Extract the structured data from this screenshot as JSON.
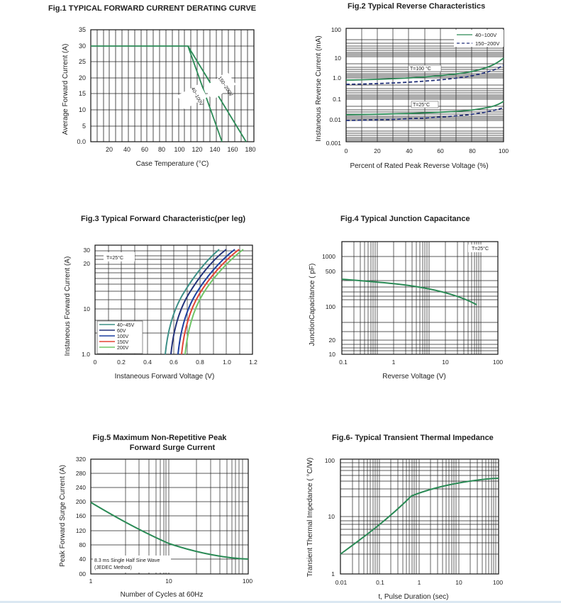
{
  "colors": {
    "green": "#2a8a55",
    "navy": "#23327a",
    "teal": "#3b8f86",
    "blue": "#1b3fa0",
    "red": "#e34234",
    "lightgreen": "#6fc567"
  },
  "chart_data": [
    {
      "id": "fig1",
      "type": "line",
      "title": "Fig.1 TYPICAL FORWARD CURRENT DERATING CURVE",
      "xlabel": "Case Temperature (°C)",
      "ylabel": "Average Forward Current (A)",
      "xlim": [
        0,
        180
      ],
      "ylim": [
        0,
        35
      ],
      "x_ticks": [
        "20",
        "40",
        "60",
        "80",
        "100",
        "120",
        "140",
        "160",
        "180"
      ],
      "y_ticks": [
        "0.0",
        "5",
        "10",
        "15",
        "20",
        "25",
        "30",
        "35"
      ],
      "grid": true,
      "series": [
        {
          "name": "40~100V",
          "color_key": "green",
          "points": [
            [
              0,
              30
            ],
            [
              105,
              30
            ],
            [
              148,
              0
            ]
          ]
        },
        {
          "name": "150~200V",
          "color_key": "green",
          "points": [
            [
              0,
              30
            ],
            [
              105,
              30
            ],
            [
              175,
              0
            ]
          ]
        }
      ]
    },
    {
      "id": "fig2",
      "type": "line",
      "title": "Fig.2 Typical Reverse Characteristics",
      "xlabel": "Percent of Rated Peak Reverse Voltage (%)",
      "ylabel": "Instaneous Reverse Current (mA)",
      "xlim": [
        0,
        100
      ],
      "ylim": [
        0.001,
        100
      ],
      "y_scale": "log",
      "x_ticks": [
        "0",
        "20",
        "40",
        "60",
        "80",
        "100"
      ],
      "y_ticks": [
        "0.001",
        "0.01",
        "0.1",
        "1.0",
        "10",
        "100"
      ],
      "grid": true,
      "legend_position": "top-right",
      "legend": [
        "40~100V",
        "150~200V"
      ],
      "annotations": [
        "T=100 °C",
        "T=25°C"
      ],
      "series": [
        {
          "name": "40~100V",
          "group": "100°C",
          "style": "solid",
          "color_key": "green",
          "points": [
            [
              0,
              0.8
            ],
            [
              20,
              0.85
            ],
            [
              40,
              0.95
            ],
            [
              60,
              1.2
            ],
            [
              80,
              2.0
            ],
            [
              90,
              3.5
            ],
            [
              100,
              9
            ]
          ]
        },
        {
          "name": "150~200V",
          "group": "100°C",
          "style": "dashed",
          "color_key": "navy",
          "points": [
            [
              0,
              0.55
            ],
            [
              20,
              0.58
            ],
            [
              40,
              0.65
            ],
            [
              60,
              0.8
            ],
            [
              80,
              1.2
            ],
            [
              90,
              1.8
            ],
            [
              100,
              3.5
            ]
          ]
        },
        {
          "name": "40~100V",
          "group": "25°C",
          "style": "solid",
          "color_key": "green",
          "points": [
            [
              0,
              0.018
            ],
            [
              20,
              0.019
            ],
            [
              40,
              0.021
            ],
            [
              60,
              0.025
            ],
            [
              80,
              0.035
            ],
            [
              90,
              0.05
            ],
            [
              100,
              0.085
            ]
          ]
        },
        {
          "name": "150~200V",
          "group": "25°C",
          "style": "dashed",
          "color_key": "navy",
          "points": [
            [
              0,
              0.011
            ],
            [
              20,
              0.012
            ],
            [
              40,
              0.013
            ],
            [
              60,
              0.016
            ],
            [
              80,
              0.022
            ],
            [
              90,
              0.03
            ],
            [
              100,
              0.045
            ]
          ]
        }
      ]
    },
    {
      "id": "fig3",
      "type": "line",
      "title": "Fig.3 Typical Forward Characteristic(per leg)",
      "xlabel": "Instaneous Forward Voltage (V)",
      "ylabel": "Instaneous Forward Current (A)",
      "xlim": [
        0,
        1.2
      ],
      "ylim": [
        1,
        30
      ],
      "y_scale": "log",
      "x_ticks": [
        "0",
        "0.2",
        "0.4",
        "0.6",
        "0.8",
        "1.0",
        "1.2"
      ],
      "y_ticks": [
        "1.0",
        "10",
        "20",
        "30"
      ],
      "grid": true,
      "legend_position": "bottom-left",
      "annotation": "T=25°C",
      "series": [
        {
          "name": "40~45V",
          "color_key": "teal",
          "points": [
            [
              0.535,
              1
            ],
            [
              0.56,
              2
            ],
            [
              0.6,
              4
            ],
            [
              0.66,
              8
            ],
            [
              0.72,
              12
            ],
            [
              0.8,
              18
            ],
            [
              0.88,
              24
            ],
            [
              0.95,
              30
            ]
          ]
        },
        {
          "name": "60V",
          "color_key": "navy",
          "points": [
            [
              0.575,
              1
            ],
            [
              0.6,
              2
            ],
            [
              0.64,
              4
            ],
            [
              0.7,
              8
            ],
            [
              0.76,
              12
            ],
            [
              0.84,
              18
            ],
            [
              0.92,
              24
            ],
            [
              0.99,
              30
            ]
          ]
        },
        {
          "name": "100V",
          "color_key": "blue",
          "points": [
            [
              0.63,
              1
            ],
            [
              0.655,
              2
            ],
            [
              0.695,
              4
            ],
            [
              0.755,
              8
            ],
            [
              0.815,
              12
            ],
            [
              0.895,
              18
            ],
            [
              0.975,
              24
            ],
            [
              1.045,
              30
            ]
          ]
        },
        {
          "name": "150V",
          "color_key": "red",
          "points": [
            [
              0.655,
              1
            ],
            [
              0.68,
              2
            ],
            [
              0.72,
              4
            ],
            [
              0.78,
              8
            ],
            [
              0.84,
              12
            ],
            [
              0.92,
              18
            ],
            [
              1.0,
              24
            ],
            [
              1.07,
              30
            ]
          ]
        },
        {
          "name": "200V",
          "color_key": "lightgreen",
          "points": [
            [
              0.68,
              1
            ],
            [
              0.705,
              2
            ],
            [
              0.745,
              4
            ],
            [
              0.805,
              8
            ],
            [
              0.865,
              12
            ],
            [
              0.945,
              18
            ],
            [
              1.025,
              24
            ],
            [
              1.095,
              30
            ]
          ]
        }
      ]
    },
    {
      "id": "fig4",
      "type": "line",
      "title": "Fig.4 Typical Junction Capacitance",
      "xlabel": "Reverse Voltage (V)",
      "ylabel": "JunctionCapacitance ( pF)",
      "x_scale": "log",
      "y_scale": "log",
      "xlim": [
        0.1,
        100
      ],
      "ylim": [
        10,
        1500
      ],
      "x_ticks": [
        "0.1",
        "1",
        "10",
        "100"
      ],
      "y_ticks": [
        "10",
        "20",
        "100",
        "500",
        "1000"
      ],
      "grid": true,
      "annotation": "T=25°C",
      "series": [
        {
          "name": "",
          "color_key": "green",
          "points": [
            [
              0.1,
              350
            ],
            [
              0.3,
              320
            ],
            [
              1,
              280
            ],
            [
              3,
              230
            ],
            [
              10,
              170
            ],
            [
              20,
              130
            ],
            [
              40,
              100
            ]
          ]
        }
      ]
    },
    {
      "id": "fig5",
      "type": "line",
      "title": "Fig.5 Maximum Non-Repetitive Peak Forward Surge Current",
      "xlabel": "Number of Cycles at 60Hz",
      "ylabel": "Peak Forward Surge Current (A)",
      "x_scale": "log",
      "xlim": [
        1,
        100
      ],
      "ylim": [
        0,
        320
      ],
      "x_ticks": [
        "1",
        "10",
        "100"
      ],
      "y_ticks": [
        "00",
        "40",
        "80",
        "120",
        "160",
        "200",
        "240",
        "280",
        "320"
      ],
      "grid": true,
      "annotation": [
        "8.3 ms Single Half Sine Wave",
        "(JEDEC Method)"
      ],
      "series": [
        {
          "name": "",
          "color_key": "green",
          "points": [
            [
              1,
              200
            ],
            [
              2,
              155
            ],
            [
              3,
              130
            ],
            [
              5,
              105
            ],
            [
              10,
              82
            ],
            [
              20,
              62
            ],
            [
              50,
              46
            ],
            [
              100,
              40
            ]
          ]
        }
      ]
    },
    {
      "id": "fig6",
      "type": "line",
      "title": "Fig.6- Typical Transient Thermal Impedance",
      "xlabel": "t, Pulse Duration (sec)",
      "ylabel": "Transient Thermal Impedance ( °C/W)",
      "x_scale": "log",
      "y_scale": "log",
      "xlim": [
        0.01,
        100
      ],
      "ylim": [
        1,
        100
      ],
      "x_ticks": [
        "0.01",
        "0.1",
        "1",
        "10",
        "100"
      ],
      "y_ticks": [
        "1",
        "10",
        "100"
      ],
      "grid": true,
      "series": [
        {
          "name": "",
          "color_key": "green",
          "points": [
            [
              0.01,
              2.2
            ],
            [
              0.03,
              4
            ],
            [
              0.1,
              8.5
            ],
            [
              0.3,
              17
            ],
            [
              0.5,
              24
            ],
            [
              1,
              28
            ],
            [
              3,
              34
            ],
            [
              10,
              40
            ],
            [
              30,
              44
            ],
            [
              100,
              47
            ]
          ]
        }
      ]
    }
  ]
}
